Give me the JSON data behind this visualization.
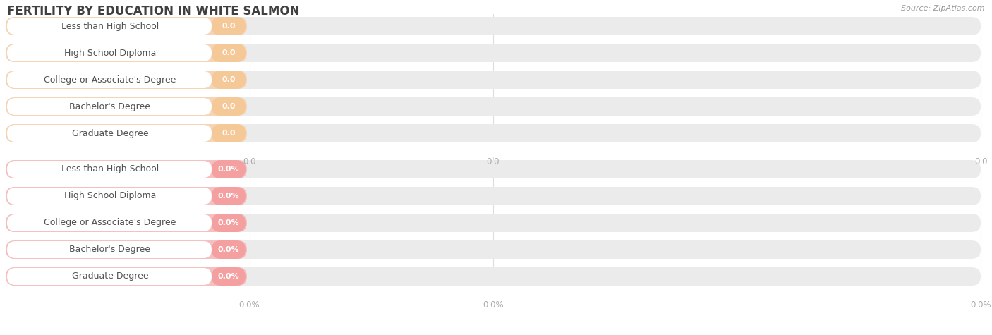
{
  "title": "FERTILITY BY EDUCATION IN WHITE SALMON",
  "source": "Source: ZipAtlas.com",
  "categories": [
    "Less than High School",
    "High School Diploma",
    "College or Associate's Degree",
    "Bachelor's Degree",
    "Graduate Degree"
  ],
  "top_values": [
    0.0,
    0.0,
    0.0,
    0.0,
    0.0
  ],
  "bottom_values": [
    0.0,
    0.0,
    0.0,
    0.0,
    0.0
  ],
  "top_bar_bg_color": "#F5D5B5",
  "top_value_pill_color": "#F5C898",
  "top_value_label": "0.0",
  "bottom_bar_bg_color": "#F5C0C0",
  "bottom_value_pill_color": "#F5A0A0",
  "bottom_value_label": "0.0%",
  "bar_track_color": "#EBEBEB",
  "bg_color": "#FFFFFF",
  "title_color": "#404040",
  "label_text_color": "#505050",
  "tick_color": "#AAAAAA",
  "source_color": "#999999",
  "white_pill_color": "#FFFFFF",
  "grid_color": "#DDDDDD"
}
